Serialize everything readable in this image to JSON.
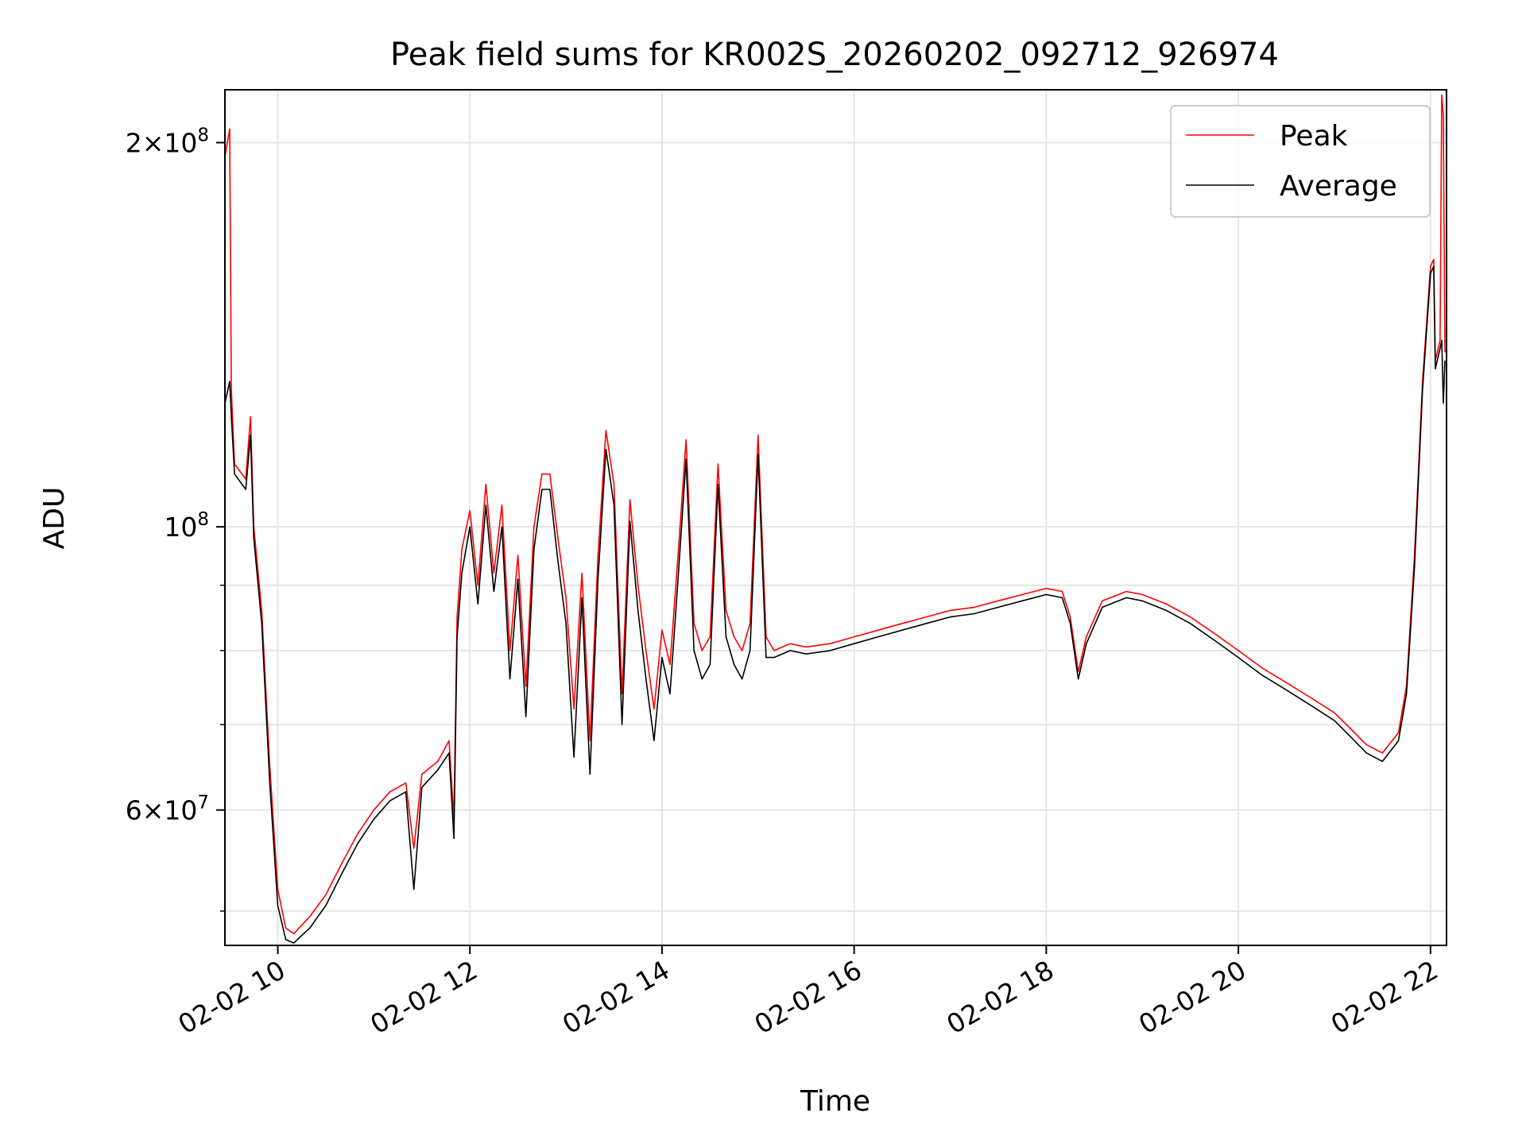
{
  "chart_data": {
    "type": "line",
    "title": "Peak field sums for KR002S_20260202_092712_926974",
    "xlabel": "Time",
    "ylabel": "ADU",
    "y_scale": "log",
    "xlim": [
      "2026-02-02T09:27",
      "2026-02-02T22:10"
    ],
    "ylim": [
      47000000,
      220000000
    ],
    "x_ticks": [
      {
        "value": "2026-02-02T10:00",
        "label": "02-02 10"
      },
      {
        "value": "2026-02-02T12:00",
        "label": "02-02 12"
      },
      {
        "value": "2026-02-02T14:00",
        "label": "02-02 14"
      },
      {
        "value": "2026-02-02T16:00",
        "label": "02-02 16"
      },
      {
        "value": "2026-02-02T18:00",
        "label": "02-02 18"
      },
      {
        "value": "2026-02-02T20:00",
        "label": "02-02 20"
      },
      {
        "value": "2026-02-02T22:00",
        "label": "02-02 22"
      }
    ],
    "y_ticks_major": [
      {
        "value": 60000000,
        "mantissa": "6",
        "exponent": "7"
      },
      {
        "value": 100000000,
        "mantissa": "",
        "exponent": "8"
      },
      {
        "value": 200000000,
        "mantissa": "2",
        "exponent": "8"
      }
    ],
    "y_ticks_minor": [
      50000000,
      70000000,
      80000000,
      90000000
    ],
    "grid": true,
    "legend_position": "top-right",
    "series": [
      {
        "name": "Peak",
        "color": "#ff0000",
        "points": [
          [
            "2026-02-02T09:27",
            195000000
          ],
          [
            "2026-02-02T09:30",
            205000000
          ],
          [
            "2026-02-02T09:31",
            128000000
          ],
          [
            "2026-02-02T09:33",
            112000000
          ],
          [
            "2026-02-02T09:40",
            109000000
          ],
          [
            "2026-02-02T09:43",
            122000000
          ],
          [
            "2026-02-02T09:45",
            100000000
          ],
          [
            "2026-02-02T09:50",
            86000000
          ],
          [
            "2026-02-02T09:55",
            65000000
          ],
          [
            "2026-02-02T10:00",
            52000000
          ],
          [
            "2026-02-02T10:05",
            48500000
          ],
          [
            "2026-02-02T10:10",
            48000000
          ],
          [
            "2026-02-02T10:20",
            49500000
          ],
          [
            "2026-02-02T10:30",
            51500000
          ],
          [
            "2026-02-02T10:40",
            54500000
          ],
          [
            "2026-02-02T10:50",
            57500000
          ],
          [
            "2026-02-02T11:00",
            60000000
          ],
          [
            "2026-02-02T11:10",
            62000000
          ],
          [
            "2026-02-02T11:20",
            63000000
          ],
          [
            "2026-02-02T11:25",
            56000000
          ],
          [
            "2026-02-02T11:30",
            64000000
          ],
          [
            "2026-02-02T11:40",
            65500000
          ],
          [
            "2026-02-02T11:47",
            68000000
          ],
          [
            "2026-02-02T11:50",
            59000000
          ],
          [
            "2026-02-02T11:52",
            85000000
          ],
          [
            "2026-02-02T11:55",
            96000000
          ],
          [
            "2026-02-02T12:00",
            103000000
          ],
          [
            "2026-02-02T12:05",
            90000000
          ],
          [
            "2026-02-02T12:10",
            108000000
          ],
          [
            "2026-02-02T12:15",
            92000000
          ],
          [
            "2026-02-02T12:20",
            104000000
          ],
          [
            "2026-02-02T12:25",
            80000000
          ],
          [
            "2026-02-02T12:30",
            95000000
          ],
          [
            "2026-02-02T12:35",
            75000000
          ],
          [
            "2026-02-02T12:40",
            100000000
          ],
          [
            "2026-02-02T12:45",
            110000000
          ],
          [
            "2026-02-02T12:50",
            110000000
          ],
          [
            "2026-02-02T12:55",
            98000000
          ],
          [
            "2026-02-02T13:00",
            88000000
          ],
          [
            "2026-02-02T13:05",
            72000000
          ],
          [
            "2026-02-02T13:10",
            92000000
          ],
          [
            "2026-02-02T13:15",
            68000000
          ],
          [
            "2026-02-02T13:20",
            95000000
          ],
          [
            "2026-02-02T13:25",
            119000000
          ],
          [
            "2026-02-02T13:30",
            108000000
          ],
          [
            "2026-02-02T13:35",
            74000000
          ],
          [
            "2026-02-02T13:40",
            105000000
          ],
          [
            "2026-02-02T13:45",
            90000000
          ],
          [
            "2026-02-02T13:50",
            80000000
          ],
          [
            "2026-02-02T13:55",
            72000000
          ],
          [
            "2026-02-02T14:00",
            83000000
          ],
          [
            "2026-02-02T14:05",
            78000000
          ],
          [
            "2026-02-02T14:10",
            95000000
          ],
          [
            "2026-02-02T14:15",
            117000000
          ],
          [
            "2026-02-02T14:20",
            84000000
          ],
          [
            "2026-02-02T14:25",
            80000000
          ],
          [
            "2026-02-02T14:30",
            82000000
          ],
          [
            "2026-02-02T14:35",
            112000000
          ],
          [
            "2026-02-02T14:40",
            86000000
          ],
          [
            "2026-02-02T14:45",
            82000000
          ],
          [
            "2026-02-02T14:50",
            80000000
          ],
          [
            "2026-02-02T14:55",
            84000000
          ],
          [
            "2026-02-02T15:00",
            118000000
          ],
          [
            "2026-02-02T15:05",
            82000000
          ],
          [
            "2026-02-02T15:10",
            80000000
          ],
          [
            "2026-02-02T15:20",
            81000000
          ],
          [
            "2026-02-02T15:30",
            80500000
          ],
          [
            "2026-02-02T15:45",
            81000000
          ],
          [
            "2026-02-02T16:00",
            82000000
          ],
          [
            "2026-02-02T16:15",
            83000000
          ],
          [
            "2026-02-02T16:30",
            84000000
          ],
          [
            "2026-02-02T16:45",
            85000000
          ],
          [
            "2026-02-02T17:00",
            86000000
          ],
          [
            "2026-02-02T17:15",
            86500000
          ],
          [
            "2026-02-02T17:30",
            87500000
          ],
          [
            "2026-02-02T17:45",
            88500000
          ],
          [
            "2026-02-02T18:00",
            89500000
          ],
          [
            "2026-02-02T18:10",
            89000000
          ],
          [
            "2026-02-02T18:15",
            85000000
          ],
          [
            "2026-02-02T18:20",
            77000000
          ],
          [
            "2026-02-02T18:25",
            82000000
          ],
          [
            "2026-02-02T18:35",
            87500000
          ],
          [
            "2026-02-02T18:50",
            89000000
          ],
          [
            "2026-02-02T19:00",
            88500000
          ],
          [
            "2026-02-02T19:15",
            87000000
          ],
          [
            "2026-02-02T19:30",
            85000000
          ],
          [
            "2026-02-02T19:45",
            82500000
          ],
          [
            "2026-02-02T20:00",
            80000000
          ],
          [
            "2026-02-02T20:15",
            77500000
          ],
          [
            "2026-02-02T20:30",
            75500000
          ],
          [
            "2026-02-02T20:45",
            73500000
          ],
          [
            "2026-02-02T21:00",
            71500000
          ],
          [
            "2026-02-02T21:10",
            69500000
          ],
          [
            "2026-02-02T21:20",
            67500000
          ],
          [
            "2026-02-02T21:30",
            66500000
          ],
          [
            "2026-02-02T21:40",
            69000000
          ],
          [
            "2026-02-02T21:45",
            75000000
          ],
          [
            "2026-02-02T21:50",
            95000000
          ],
          [
            "2026-02-02T21:55",
            130000000
          ],
          [
            "2026-02-02T22:00",
            160000000
          ],
          [
            "2026-02-02T22:02",
            162000000
          ],
          [
            "2026-02-02T22:03",
            135000000
          ],
          [
            "2026-02-02T22:06",
            140000000
          ],
          [
            "2026-02-02T22:07",
            218000000
          ],
          [
            "2026-02-02T22:08",
            210000000
          ],
          [
            "2026-02-02T22:09",
            137000000
          ]
        ]
      },
      {
        "name": "Average",
        "color": "#000000",
        "points": [
          [
            "2026-02-02T09:27",
            125000000
          ],
          [
            "2026-02-02T09:30",
            130000000
          ],
          [
            "2026-02-02T09:31",
            122000000
          ],
          [
            "2026-02-02T09:33",
            110000000
          ],
          [
            "2026-02-02T09:40",
            107000000
          ],
          [
            "2026-02-02T09:43",
            118000000
          ],
          [
            "2026-02-02T09:45",
            98000000
          ],
          [
            "2026-02-02T09:50",
            84000000
          ],
          [
            "2026-02-02T09:55",
            63000000
          ],
          [
            "2026-02-02T10:00",
            50500000
          ],
          [
            "2026-02-02T10:05",
            47500000
          ],
          [
            "2026-02-02T10:10",
            47200000
          ],
          [
            "2026-02-02T10:20",
            48500000
          ],
          [
            "2026-02-02T10:30",
            50500000
          ],
          [
            "2026-02-02T10:40",
            53500000
          ],
          [
            "2026-02-02T10:50",
            56500000
          ],
          [
            "2026-02-02T11:00",
            59000000
          ],
          [
            "2026-02-02T11:10",
            61000000
          ],
          [
            "2026-02-02T11:20",
            62000000
          ],
          [
            "2026-02-02T11:25",
            52000000
          ],
          [
            "2026-02-02T11:30",
            62500000
          ],
          [
            "2026-02-02T11:40",
            64500000
          ],
          [
            "2026-02-02T11:47",
            66500000
          ],
          [
            "2026-02-02T11:50",
            57000000
          ],
          [
            "2026-02-02T11:52",
            82000000
          ],
          [
            "2026-02-02T11:55",
            92000000
          ],
          [
            "2026-02-02T12:00",
            100000000
          ],
          [
            "2026-02-02T12:05",
            87000000
          ],
          [
            "2026-02-02T12:10",
            104000000
          ],
          [
            "2026-02-02T12:15",
            89000000
          ],
          [
            "2026-02-02T12:20",
            100000000
          ],
          [
            "2026-02-02T12:25",
            76000000
          ],
          [
            "2026-02-02T12:30",
            91000000
          ],
          [
            "2026-02-02T12:35",
            71000000
          ],
          [
            "2026-02-02T12:40",
            96000000
          ],
          [
            "2026-02-02T12:45",
            107000000
          ],
          [
            "2026-02-02T12:50",
            107000000
          ],
          [
            "2026-02-02T12:55",
            94000000
          ],
          [
            "2026-02-02T13:00",
            84000000
          ],
          [
            "2026-02-02T13:05",
            66000000
          ],
          [
            "2026-02-02T13:10",
            88000000
          ],
          [
            "2026-02-02T13:15",
            64000000
          ],
          [
            "2026-02-02T13:20",
            91000000
          ],
          [
            "2026-02-02T13:25",
            115000000
          ],
          [
            "2026-02-02T13:30",
            104000000
          ],
          [
            "2026-02-02T13:35",
            70000000
          ],
          [
            "2026-02-02T13:40",
            101000000
          ],
          [
            "2026-02-02T13:45",
            86000000
          ],
          [
            "2026-02-02T13:50",
            76000000
          ],
          [
            "2026-02-02T13:55",
            68000000
          ],
          [
            "2026-02-02T14:00",
            79000000
          ],
          [
            "2026-02-02T14:05",
            74000000
          ],
          [
            "2026-02-02T14:10",
            91000000
          ],
          [
            "2026-02-02T14:15",
            113000000
          ],
          [
            "2026-02-02T14:20",
            80000000
          ],
          [
            "2026-02-02T14:25",
            76000000
          ],
          [
            "2026-02-02T14:30",
            78000000
          ],
          [
            "2026-02-02T14:35",
            108000000
          ],
          [
            "2026-02-02T14:40",
            82000000
          ],
          [
            "2026-02-02T14:45",
            78000000
          ],
          [
            "2026-02-02T14:50",
            76000000
          ],
          [
            "2026-02-02T14:55",
            80000000
          ],
          [
            "2026-02-02T15:00",
            114000000
          ],
          [
            "2026-02-02T15:05",
            79000000
          ],
          [
            "2026-02-02T15:10",
            79000000
          ],
          [
            "2026-02-02T15:20",
            80000000
          ],
          [
            "2026-02-02T15:30",
            79500000
          ],
          [
            "2026-02-02T15:45",
            80000000
          ],
          [
            "2026-02-02T16:00",
            81000000
          ],
          [
            "2026-02-02T16:15",
            82000000
          ],
          [
            "2026-02-02T16:30",
            83000000
          ],
          [
            "2026-02-02T16:45",
            84000000
          ],
          [
            "2026-02-02T17:00",
            85000000
          ],
          [
            "2026-02-02T17:15",
            85500000
          ],
          [
            "2026-02-02T17:30",
            86500000
          ],
          [
            "2026-02-02T17:45",
            87500000
          ],
          [
            "2026-02-02T18:00",
            88500000
          ],
          [
            "2026-02-02T18:10",
            88000000
          ],
          [
            "2026-02-02T18:15",
            84000000
          ],
          [
            "2026-02-02T18:20",
            76000000
          ],
          [
            "2026-02-02T18:25",
            81000000
          ],
          [
            "2026-02-02T18:35",
            86500000
          ],
          [
            "2026-02-02T18:50",
            88000000
          ],
          [
            "2026-02-02T19:00",
            87500000
          ],
          [
            "2026-02-02T19:15",
            86000000
          ],
          [
            "2026-02-02T19:30",
            84000000
          ],
          [
            "2026-02-02T19:45",
            81500000
          ],
          [
            "2026-02-02T20:00",
            79000000
          ],
          [
            "2026-02-02T20:15",
            76500000
          ],
          [
            "2026-02-02T20:30",
            74500000
          ],
          [
            "2026-02-02T20:45",
            72500000
          ],
          [
            "2026-02-02T21:00",
            70500000
          ],
          [
            "2026-02-02T21:10",
            68500000
          ],
          [
            "2026-02-02T21:20",
            66500000
          ],
          [
            "2026-02-02T21:30",
            65500000
          ],
          [
            "2026-02-02T21:40",
            68000000
          ],
          [
            "2026-02-02T21:45",
            74000000
          ],
          [
            "2026-02-02T21:50",
            93000000
          ],
          [
            "2026-02-02T21:55",
            128000000
          ],
          [
            "2026-02-02T22:00",
            158000000
          ],
          [
            "2026-02-02T22:02",
            160000000
          ],
          [
            "2026-02-02T22:03",
            133000000
          ],
          [
            "2026-02-02T22:06",
            138000000
          ],
          [
            "2026-02-02T22:07",
            140000000
          ],
          [
            "2026-02-02T22:08",
            125000000
          ],
          [
            "2026-02-02T22:09",
            135000000
          ]
        ]
      }
    ]
  }
}
